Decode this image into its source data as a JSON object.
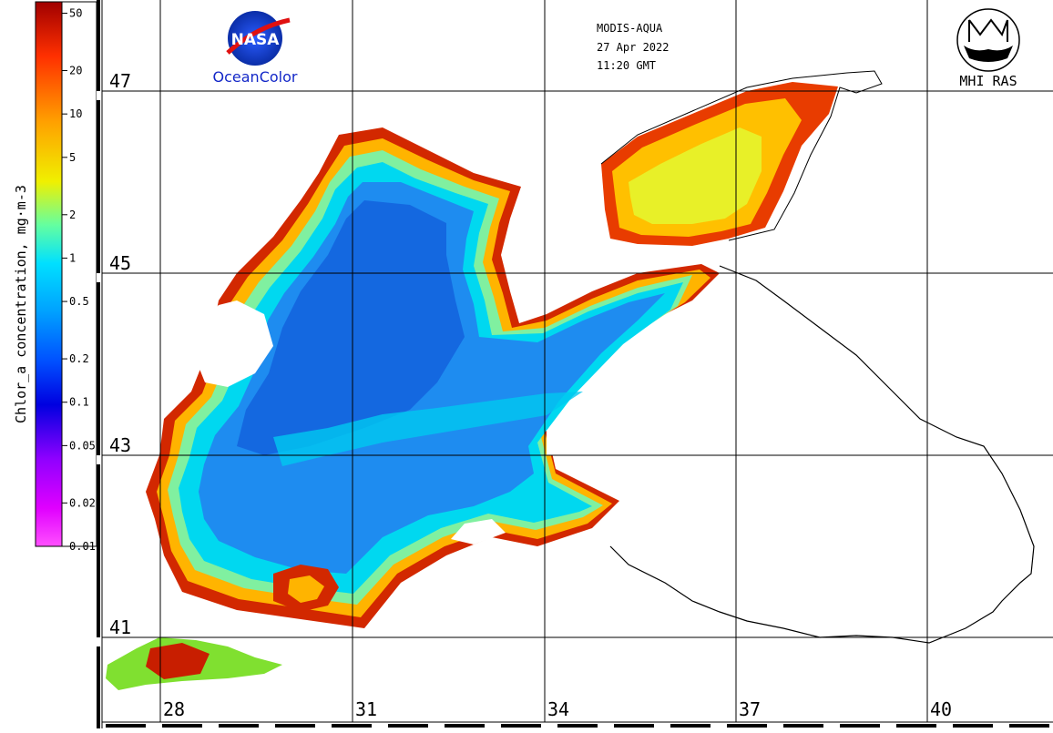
{
  "header": {
    "sensor": "MODIS-AQUA",
    "date": "27 Apr 2022",
    "time": "11:20 GMT"
  },
  "logos": {
    "nasa_text": "NASA",
    "oceancolor_text": "OceanColor",
    "mhi_text": "MHI RAS"
  },
  "colorbar": {
    "title": "Chlor_a concentration, mg·m-3",
    "ticks": [
      "50",
      "20",
      "10",
      "5",
      "2",
      "1",
      "0.5",
      "0.2",
      "0.1",
      "0.05",
      "0.02",
      "0.01"
    ],
    "colors": [
      "#b40000",
      "#ff5000",
      "#ffb400",
      "#dcf000",
      "#50fab4",
      "#00dcff",
      "#0096ff",
      "#0050f0",
      "#0000dc",
      "#8c00ff",
      "#dc00ff",
      "#ff3cff"
    ]
  },
  "grid": {
    "latitudes": [
      "47",
      "45",
      "43",
      "41"
    ],
    "longitudes": [
      "28",
      "31",
      "34",
      "37",
      "40"
    ]
  },
  "colors": {
    "open_sea": "#1e82f0",
    "deep": "#1464dc",
    "coastal_high": "#c81e00",
    "moderate": "#ffc800",
    "mid": "#00e6ff"
  }
}
